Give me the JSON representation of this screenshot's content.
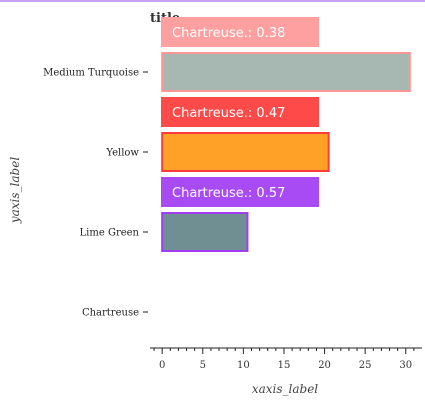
{
  "chart_data": {
    "type": "bar",
    "orientation": "horizontal",
    "title": "title",
    "xlabel": "xaxis_label",
    "ylabel": "yaxis_label",
    "xlim": [
      -1.5,
      32
    ],
    "xticks": [
      0,
      5,
      10,
      15,
      20,
      25,
      30
    ],
    "grid": false,
    "categories": [
      "Medium Turquoise",
      "Yellow",
      "Lime Green",
      "Chartreuse"
    ],
    "values": [
      30.5,
      20.5,
      10.5,
      0
    ],
    "bar_colors": [
      "#a7b8b3",
      "#ffa126",
      "#6f8f93",
      "#7fff00"
    ],
    "bar_edge_colors": [
      "#ff9696",
      "#ff3c3c",
      "#a33cf5",
      "#7fff00"
    ],
    "annotations": [
      {
        "text": "Chartreuse.: 0.38",
        "color": "#ffa0a0",
        "category": "Medium Turquoise"
      },
      {
        "text": "Chartreuse.: 0.47",
        "color": "#ff4a4a",
        "category": "Yellow"
      },
      {
        "text": "Chartreuse.: 0.57",
        "color": "#a94bf5",
        "category": "Lime Green"
      }
    ]
  }
}
